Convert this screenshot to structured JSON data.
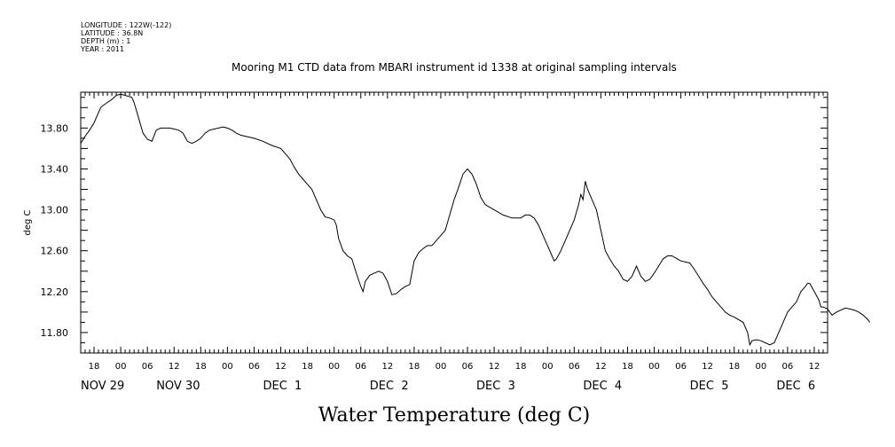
{
  "metadata": {
    "lines": [
      "LONGITUDE : 122W(-122)",
      "LATITUDE : 36.8N",
      "DEPTH (m) : 1",
      "YEAR : 2011"
    ]
  },
  "chart_data": {
    "type": "line",
    "title": "Mooring M1 CTD data from MBARI instrument id 1338 at original sampling intervals",
    "ylabel": "deg C",
    "xtitle": "Water Temperature (deg C)",
    "ylim": [
      11.6,
      14.15
    ],
    "yticks": [
      11.8,
      12.2,
      12.6,
      13.0,
      13.4,
      13.8
    ],
    "ytick_labels": [
      "11.80",
      "12.20",
      "12.60",
      "13.00",
      "13.40",
      "13.80"
    ],
    "xlim_hours": [
      -9,
      159
    ],
    "hour_ticks": [
      {
        "h": -6,
        "label": "18"
      },
      {
        "h": 0,
        "label": "00"
      },
      {
        "h": 6,
        "label": "06"
      },
      {
        "h": 12,
        "label": "12"
      },
      {
        "h": 18,
        "label": "18"
      },
      {
        "h": 24,
        "label": "00"
      },
      {
        "h": 30,
        "label": "06"
      },
      {
        "h": 36,
        "label": "12"
      },
      {
        "h": 42,
        "label": "18"
      },
      {
        "h": 48,
        "label": "00"
      },
      {
        "h": 54,
        "label": "06"
      },
      {
        "h": 60,
        "label": "12"
      },
      {
        "h": 66,
        "label": "18"
      },
      {
        "h": 72,
        "label": "00"
      },
      {
        "h": 78,
        "label": "06"
      },
      {
        "h": 84,
        "label": "12"
      },
      {
        "h": 90,
        "label": "18"
      },
      {
        "h": 96,
        "label": "00"
      },
      {
        "h": 102,
        "label": "06"
      },
      {
        "h": 108,
        "label": "12"
      },
      {
        "h": 114,
        "label": "18"
      },
      {
        "h": 120,
        "label": "00"
      },
      {
        "h": 126,
        "label": "06"
      },
      {
        "h": 132,
        "label": "12"
      },
      {
        "h": 138,
        "label": "18"
      },
      {
        "h": 144,
        "label": "00"
      },
      {
        "h": 150,
        "label": "06"
      },
      {
        "h": 156,
        "label": "12"
      }
    ],
    "day_labels": [
      {
        "h": -9,
        "label": "NOV 29"
      },
      {
        "h": 8,
        "label": "NOV 30"
      },
      {
        "h": 32,
        "label": "DEC  1"
      },
      {
        "h": 56,
        "label": "DEC  2"
      },
      {
        "h": 80,
        "label": "DEC  3"
      },
      {
        "h": 104,
        "label": "DEC  4"
      },
      {
        "h": 128,
        "label": "DEC  5"
      },
      {
        "h": 147.5,
        "label": "DEC  6"
      }
    ],
    "series": [
      {
        "points": [
          [
            -9.0,
            13.65
          ],
          [
            -8.0,
            13.72
          ],
          [
            -7.0,
            13.78
          ],
          [
            -6.0,
            13.85
          ],
          [
            -5.0,
            13.95
          ],
          [
            -4.5,
            14.0
          ],
          [
            -4.0,
            14.02
          ],
          [
            -3.0,
            14.05
          ],
          [
            -2.0,
            14.08
          ],
          [
            -1.0,
            14.12
          ],
          [
            0.0,
            14.13
          ],
          [
            1.0,
            14.12
          ],
          [
            2.5,
            14.1
          ],
          [
            3.0,
            14.05
          ],
          [
            4.0,
            13.9
          ],
          [
            5.0,
            13.75
          ],
          [
            6.0,
            13.69
          ],
          [
            7.0,
            13.67
          ],
          [
            8.0,
            13.78
          ],
          [
            9.0,
            13.8
          ],
          [
            10.0,
            13.8
          ],
          [
            11.0,
            13.8
          ],
          [
            12.0,
            13.79
          ],
          [
            13.0,
            13.78
          ],
          [
            14.0,
            13.75
          ],
          [
            15.0,
            13.67
          ],
          [
            16.0,
            13.65
          ],
          [
            17.0,
            13.67
          ],
          [
            18.0,
            13.7
          ],
          [
            19.0,
            13.75
          ],
          [
            20.0,
            13.78
          ],
          [
            21.0,
            13.79
          ],
          [
            22.0,
            13.8
          ],
          [
            23.0,
            13.81
          ],
          [
            24.0,
            13.8
          ],
          [
            25.0,
            13.78
          ],
          [
            26.0,
            13.75
          ],
          [
            27.0,
            13.73
          ],
          [
            28.0,
            13.72
          ],
          [
            30.0,
            13.7
          ],
          [
            32.0,
            13.67
          ],
          [
            34.0,
            13.63
          ],
          [
            36.0,
            13.6
          ],
          [
            38.0,
            13.5
          ],
          [
            39.0,
            13.42
          ],
          [
            40.0,
            13.35
          ],
          [
            41.0,
            13.3
          ],
          [
            42.0,
            13.25
          ],
          [
            43.0,
            13.2
          ],
          [
            44.0,
            13.1
          ],
          [
            45.0,
            13.0
          ],
          [
            46.0,
            12.93
          ],
          [
            47.0,
            12.92
          ],
          [
            48.0,
            12.9
          ],
          [
            48.5,
            12.85
          ],
          [
            49.0,
            12.72
          ],
          [
            50.0,
            12.6
          ],
          [
            51.0,
            12.55
          ],
          [
            52.0,
            12.52
          ],
          [
            53.0,
            12.38
          ],
          [
            54.0,
            12.25
          ],
          [
            54.5,
            12.2
          ],
          [
            55.0,
            12.3
          ],
          [
            56.0,
            12.36
          ],
          [
            57.0,
            12.38
          ],
          [
            58.0,
            12.4
          ],
          [
            59.0,
            12.38
          ],
          [
            60.0,
            12.3
          ],
          [
            61.0,
            12.17
          ],
          [
            62.0,
            12.18
          ],
          [
            63.0,
            12.22
          ],
          [
            64.0,
            12.25
          ],
          [
            65.0,
            12.27
          ],
          [
            66.0,
            12.5
          ],
          [
            67.0,
            12.58
          ],
          [
            68.0,
            12.62
          ],
          [
            69.0,
            12.65
          ],
          [
            70.0,
            12.65
          ],
          [
            71.0,
            12.7
          ],
          [
            72.0,
            12.75
          ],
          [
            73.0,
            12.8
          ],
          [
            74.0,
            12.95
          ],
          [
            75.0,
            13.1
          ],
          [
            76.0,
            13.22
          ],
          [
            77.0,
            13.35
          ],
          [
            78.0,
            13.4
          ],
          [
            79.0,
            13.35
          ],
          [
            80.0,
            13.25
          ],
          [
            81.0,
            13.12
          ],
          [
            82.0,
            13.05
          ],
          [
            84.0,
            13.0
          ],
          [
            86.0,
            12.95
          ],
          [
            88.0,
            12.92
          ],
          [
            90.0,
            12.92
          ],
          [
            91.0,
            12.95
          ],
          [
            92.0,
            12.95
          ],
          [
            93.0,
            12.92
          ],
          [
            94.0,
            12.85
          ],
          [
            95.0,
            12.75
          ],
          [
            96.0,
            12.65
          ],
          [
            97.0,
            12.55
          ],
          [
            97.5,
            12.5
          ],
          [
            98.0,
            12.52
          ],
          [
            99.0,
            12.6
          ],
          [
            100.0,
            12.7
          ],
          [
            101.0,
            12.8
          ],
          [
            102.0,
            12.9
          ],
          [
            103.0,
            13.05
          ],
          [
            103.5,
            13.15
          ],
          [
            104.0,
            13.1
          ],
          [
            104.5,
            13.28
          ],
          [
            105.0,
            13.2
          ],
          [
            106.0,
            13.1
          ],
          [
            107.0,
            13.0
          ],
          [
            108.0,
            12.8
          ],
          [
            109.0,
            12.6
          ],
          [
            110.0,
            12.52
          ],
          [
            111.0,
            12.45
          ],
          [
            112.0,
            12.4
          ],
          [
            113.0,
            12.32
          ],
          [
            114.0,
            12.3
          ],
          [
            115.0,
            12.35
          ],
          [
            116.0,
            12.45
          ],
          [
            117.0,
            12.35
          ],
          [
            118.0,
            12.3
          ],
          [
            119.0,
            12.32
          ],
          [
            120.0,
            12.38
          ],
          [
            121.0,
            12.45
          ],
          [
            122.0,
            12.52
          ],
          [
            123.0,
            12.55
          ],
          [
            124.0,
            12.55
          ],
          [
            126.0,
            12.5
          ],
          [
            128.0,
            12.48
          ],
          [
            129.0,
            12.42
          ],
          [
            130.0,
            12.35
          ],
          [
            131.0,
            12.28
          ],
          [
            132.0,
            12.22
          ],
          [
            133.0,
            12.15
          ],
          [
            134.0,
            12.1
          ],
          [
            135.0,
            12.05
          ],
          [
            136.0,
            12.0
          ],
          [
            137.0,
            11.97
          ],
          [
            138.0,
            11.95
          ],
          [
            140.0,
            11.9
          ],
          [
            141.0,
            11.8
          ],
          [
            141.5,
            11.68
          ],
          [
            142.0,
            11.72
          ],
          [
            143.0,
            11.73
          ],
          [
            144.0,
            11.72
          ],
          [
            145.0,
            11.7
          ],
          [
            146.0,
            11.68
          ],
          [
            147.0,
            11.7
          ],
          [
            148.0,
            11.8
          ],
          [
            149.0,
            11.9
          ],
          [
            150.0,
            12.0
          ],
          [
            151.0,
            12.05
          ],
          [
            152.0,
            12.1
          ],
          [
            153.0,
            12.2
          ],
          [
            154.0,
            12.25
          ],
          [
            154.5,
            12.28
          ],
          [
            155.0,
            12.28
          ],
          [
            156.0,
            12.2
          ],
          [
            157.0,
            12.12
          ],
          [
            157.5,
            12.05
          ],
          [
            158.0,
            12.05
          ],
          [
            159.0,
            12.03
          ],
          [
            160.0,
            11.97
          ],
          [
            161.0,
            12.0
          ],
          [
            162.0,
            12.02
          ],
          [
            163.0,
            12.04
          ],
          [
            164.0,
            12.03
          ],
          [
            165.0,
            12.02
          ],
          [
            166.0,
            12.0
          ],
          [
            167.0,
            11.97
          ],
          [
            168.0,
            11.93
          ],
          [
            168.5,
            11.9
          ]
        ]
      }
    ]
  }
}
